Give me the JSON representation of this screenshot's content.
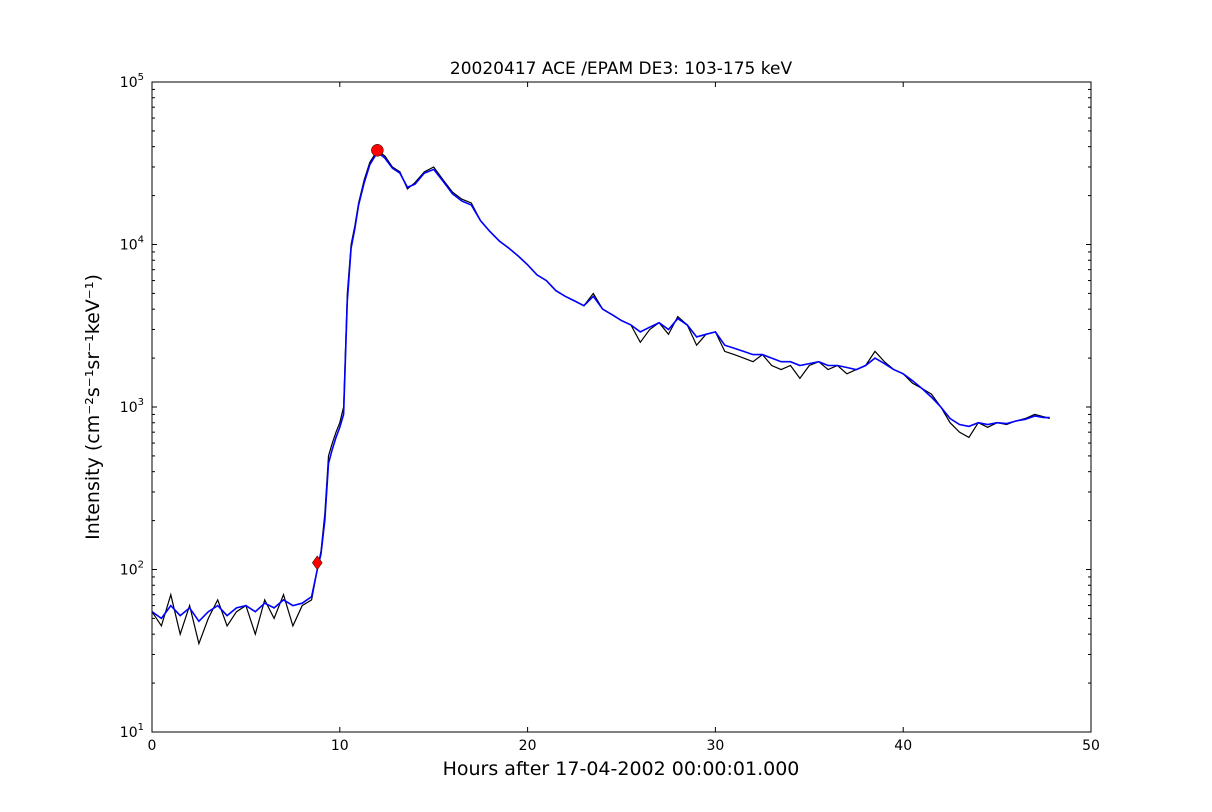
{
  "chart_data": {
    "type": "line",
    "title": "20020417 ACE /EPAM DE3: 103-175 keV",
    "xlabel": "Hours after 17-04-2002 00:00:01.000",
    "ylabel": "Intensity (cm⁻²s⁻¹sr⁻¹keV⁻¹)",
    "xlim": [
      0,
      50
    ],
    "ylim": [
      10,
      100000
    ],
    "yscale": "log",
    "grid": false,
    "x_ticks": [
      "0",
      "10",
      "20",
      "30",
      "40",
      "50"
    ],
    "y_ticks": [
      {
        "base": "10",
        "exp": "1"
      },
      {
        "base": "10",
        "exp": "2"
      },
      {
        "base": "10",
        "exp": "3"
      },
      {
        "base": "10",
        "exp": "4"
      },
      {
        "base": "10",
        "exp": "5"
      }
    ],
    "series": [
      {
        "color": "#000000",
        "x": [
          0,
          0.5,
          1,
          1.5,
          2,
          2.5,
          3,
          3.5,
          4,
          4.5,
          5,
          5.5,
          6,
          6.5,
          7,
          7.5,
          8,
          8.5,
          8.8,
          9.0,
          9.2,
          9.4,
          9.6,
          9.8,
          10.0,
          10.2,
          10.4,
          10.6,
          10.8,
          11.0,
          11.3,
          11.6,
          12.0,
          12.4,
          12.8,
          13.2,
          13.6,
          14.0,
          14.5,
          15.0,
          15.5,
          16.0,
          16.5,
          17.0,
          17.5,
          18.0,
          18.5,
          19.0,
          19.5,
          20.0,
          20.5,
          21.0,
          21.5,
          22.0,
          22.5,
          23.0,
          23.5,
          24.0,
          24.5,
          25.0,
          25.5,
          26.0,
          26.5,
          27.0,
          27.5,
          28.0,
          28.5,
          29.0,
          29.5,
          30.0,
          30.5,
          31.0,
          31.5,
          32.0,
          32.5,
          33.0,
          33.5,
          34.0,
          34.5,
          35.0,
          35.5,
          36.0,
          36.5,
          37.0,
          37.5,
          38.0,
          38.5,
          39.0,
          39.5,
          40.0,
          40.5,
          41.0,
          41.5,
          42.0,
          42.5,
          43.0,
          43.5,
          44.0,
          44.5,
          45.0,
          45.5,
          46.0,
          46.5,
          47.0,
          47.5,
          47.8
        ],
        "y": [
          55,
          45,
          70,
          40,
          60,
          35,
          50,
          65,
          45,
          55,
          60,
          40,
          65,
          50,
          70,
          45,
          60,
          65,
          100,
          130,
          220,
          500,
          600,
          700,
          800,
          1000,
          5000,
          10000,
          13000,
          18000,
          25000,
          32000,
          38000,
          35000,
          30000,
          28000,
          22000,
          24000,
          28000,
          30000,
          25000,
          21000,
          19000,
          18000,
          14000,
          12000,
          10500,
          9500,
          8500,
          7500,
          6500,
          6000,
          5200,
          4800,
          4500,
          4200,
          5000,
          4000,
          3700,
          3400,
          3200,
          2500,
          3000,
          3300,
          2800,
          3600,
          3200,
          2400,
          2800,
          2900,
          2200,
          2100,
          2000,
          1900,
          2100,
          1800,
          1700,
          1800,
          1500,
          1800,
          1900,
          1700,
          1800,
          1600,
          1700,
          1800,
          2200,
          1900,
          1700,
          1600,
          1400,
          1300,
          1200,
          1000,
          800,
          700,
          650,
          800,
          750,
          800,
          780,
          820,
          850,
          900,
          870,
          850
        ]
      },
      {
        "color": "#0000ff",
        "x": [
          0,
          0.5,
          1,
          1.5,
          2,
          2.5,
          3,
          3.5,
          4,
          4.5,
          5,
          5.5,
          6,
          6.5,
          7,
          7.5,
          8,
          8.5,
          8.8,
          9.0,
          9.2,
          9.4,
          9.6,
          9.8,
          10.0,
          10.2,
          10.4,
          10.6,
          10.8,
          11.0,
          11.3,
          11.6,
          12.0,
          12.4,
          12.8,
          13.2,
          13.6,
          14.0,
          14.5,
          15.0,
          15.5,
          16.0,
          16.5,
          17.0,
          17.5,
          18.0,
          18.5,
          19.0,
          19.5,
          20.0,
          20.5,
          21.0,
          21.5,
          22.0,
          22.5,
          23.0,
          23.5,
          24.0,
          24.5,
          25.0,
          25.5,
          26.0,
          26.5,
          27.0,
          27.5,
          28.0,
          28.5,
          29.0,
          29.5,
          30.0,
          30.5,
          31.0,
          31.5,
          32.0,
          32.5,
          33.0,
          33.5,
          34.0,
          34.5,
          35.0,
          35.5,
          36.0,
          36.5,
          37.0,
          37.5,
          38.0,
          38.5,
          39.0,
          39.5,
          40.0,
          40.5,
          41.0,
          41.5,
          42.0,
          42.5,
          43.0,
          43.5,
          44.0,
          44.5,
          45.0,
          45.5,
          46.0,
          46.5,
          47.0,
          47.5,
          47.8
        ],
        "y": [
          55,
          50,
          60,
          52,
          58,
          48,
          55,
          60,
          52,
          58,
          60,
          55,
          62,
          58,
          65,
          60,
          62,
          68,
          100,
          125,
          200,
          450,
          550,
          650,
          750,
          900,
          4500,
          9500,
          12500,
          17500,
          24000,
          31000,
          37000,
          34000,
          29500,
          27500,
          22500,
          23500,
          27500,
          29000,
          24500,
          20500,
          18500,
          17500,
          14000,
          12000,
          10500,
          9500,
          8500,
          7500,
          6500,
          6000,
          5200,
          4800,
          4500,
          4200,
          4800,
          4000,
          3700,
          3400,
          3200,
          2900,
          3100,
          3300,
          3000,
          3500,
          3200,
          2700,
          2800,
          2900,
          2400,
          2300,
          2200,
          2100,
          2100,
          2000,
          1900,
          1900,
          1800,
          1850,
          1900,
          1800,
          1800,
          1750,
          1700,
          1800,
          2000,
          1850,
          1700,
          1600,
          1450,
          1300,
          1150,
          1000,
          850,
          780,
          760,
          800,
          780,
          800,
          790,
          820,
          840,
          880,
          860,
          860
        ]
      }
    ],
    "markers": [
      {
        "shape": "diamond",
        "color": "#ff0000",
        "x": 8.8,
        "y": 110
      },
      {
        "shape": "circle",
        "color": "#ff0000",
        "x": 12.0,
        "y": 38000
      }
    ]
  }
}
